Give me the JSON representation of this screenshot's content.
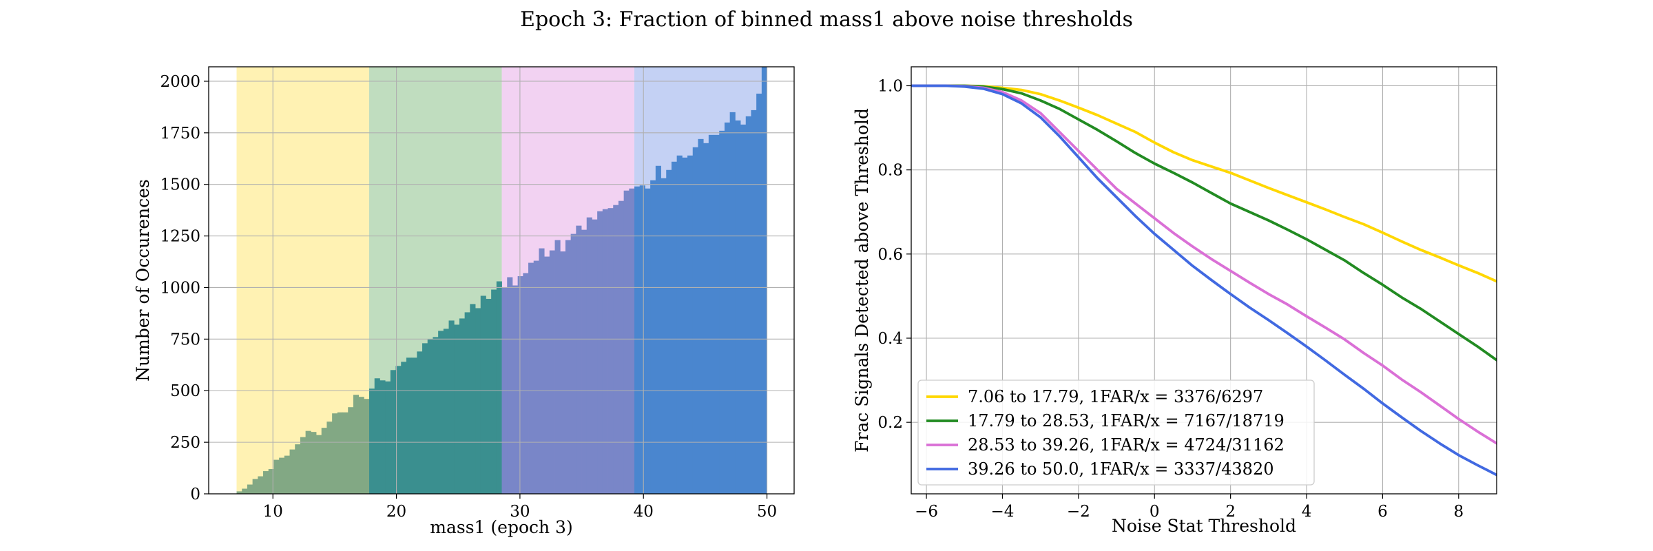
{
  "figure": {
    "title": "Epoch 3: Fraction of binned mass1 above noise thresholds"
  },
  "chart_data": [
    {
      "type": "bar",
      "xlabel": "mass1 (epoch 3)",
      "ylabel": "Number of Occurences",
      "xlim": [
        4.8,
        52.2
      ],
      "ylim": [
        0,
        2070
      ],
      "xticks": [
        10,
        20,
        30,
        40,
        50
      ],
      "yticks": [
        0,
        250,
        500,
        750,
        1000,
        1250,
        1500,
        1750,
        2000
      ],
      "grid": true,
      "bin_range": [
        7.06,
        50.0
      ],
      "bin_count": 100,
      "bands": [
        {
          "from": 7.06,
          "to": 17.79,
          "band_color": "#fff2b3",
          "bar_color": "#82a884"
        },
        {
          "from": 17.79,
          "to": 28.53,
          "band_color": "#c0ddbf",
          "bar_color": "#3a8f8f"
        },
        {
          "from": 28.53,
          "to": 39.26,
          "band_color": "#f2d2f2",
          "bar_color": "#7986c8"
        },
        {
          "from": 39.26,
          "to": 50.0,
          "band_color": "#c4d1f4",
          "bar_color": "#4a86cf"
        }
      ],
      "values": [
        12,
        25,
        45,
        72,
        85,
        110,
        120,
        165,
        175,
        185,
        215,
        240,
        275,
        305,
        300,
        285,
        320,
        350,
        390,
        395,
        395,
        420,
        480,
        470,
        460,
        510,
        560,
        550,
        545,
        600,
        620,
        640,
        660,
        660,
        690,
        730,
        750,
        760,
        790,
        800,
        840,
        820,
        850,
        880,
        920,
        900,
        960,
        945,
        990,
        1030,
        1000,
        1050,
        1010,
        1055,
        1070,
        1120,
        1130,
        1190,
        1150,
        1180,
        1230,
        1175,
        1230,
        1260,
        1300,
        1280,
        1340,
        1330,
        1370,
        1380,
        1385,
        1400,
        1420,
        1470,
        1480,
        1490,
        1495,
        1480,
        1520,
        1590,
        1530,
        1570,
        1610,
        1640,
        1630,
        1640,
        1680,
        1720,
        1700,
        1740,
        1740,
        1760,
        1800,
        1850,
        1810,
        1790,
        1830,
        1860,
        1940,
        2070
      ]
    },
    {
      "type": "line",
      "xlabel": "Noise Stat Threshold",
      "ylabel": "Frac Signals Detected above Threshold",
      "xlim": [
        -6.4,
        9.0
      ],
      "ylim": [
        0.03,
        1.045
      ],
      "xticks": [
        -6,
        -4,
        -2,
        0,
        2,
        4,
        6,
        8
      ],
      "xtick_labels": [
        "−6",
        "−4",
        "−2",
        "0",
        "2",
        "4",
        "6",
        "8"
      ],
      "yticks": [
        0.2,
        0.4,
        0.6,
        0.8,
        1.0
      ],
      "ytick_labels": [
        "0.2",
        "0.4",
        "0.6",
        "0.8",
        "1.0"
      ],
      "grid": true,
      "legend_position": "lower-left",
      "x": [
        -6.4,
        -6,
        -5.5,
        -5,
        -4.5,
        -4,
        -3.5,
        -3,
        -2.5,
        -2,
        -1.5,
        -1,
        -0.5,
        0,
        0.5,
        1,
        1.5,
        2,
        2.5,
        3,
        3.5,
        4,
        4.5,
        5,
        5.5,
        6,
        6.5,
        7,
        7.5,
        8,
        8.5,
        9
      ],
      "series": [
        {
          "name": "7.06 to 17.79, 1FAR/x = 3376/6297",
          "color": "#ffd700",
          "values": [
            1.0,
            1.0,
            1.0,
            1.0,
            0.999,
            0.995,
            0.99,
            0.98,
            0.965,
            0.948,
            0.93,
            0.91,
            0.89,
            0.865,
            0.842,
            0.823,
            0.808,
            0.793,
            0.775,
            0.757,
            0.74,
            0.723,
            0.706,
            0.688,
            0.671,
            0.651,
            0.63,
            0.61,
            0.592,
            0.573,
            0.555,
            0.535
          ]
        },
        {
          "name": "17.79 to 28.53, 1FAR/x = 7167/18719",
          "color": "#228b22",
          "values": [
            1.0,
            1.0,
            1.0,
            1.0,
            0.998,
            0.992,
            0.982,
            0.965,
            0.945,
            0.92,
            0.895,
            0.868,
            0.84,
            0.815,
            0.793,
            0.77,
            0.745,
            0.72,
            0.7,
            0.68,
            0.658,
            0.635,
            0.61,
            0.585,
            0.555,
            0.527,
            0.497,
            0.47,
            0.44,
            0.41,
            0.38,
            0.348
          ]
        },
        {
          "name": "28.53 to 39.26, 1FAR/x = 4724/31162",
          "color": "#da70d6",
          "values": [
            1.0,
            1.0,
            1.0,
            0.999,
            0.995,
            0.985,
            0.965,
            0.935,
            0.89,
            0.845,
            0.8,
            0.755,
            0.72,
            0.685,
            0.65,
            0.618,
            0.588,
            0.56,
            0.532,
            0.505,
            0.48,
            0.452,
            0.425,
            0.397,
            0.365,
            0.335,
            0.302,
            0.272,
            0.24,
            0.208,
            0.178,
            0.15
          ]
        },
        {
          "name": "39.26 to 50.0, 1FAR/x = 3337/43820",
          "color": "#4169e1",
          "values": [
            1.0,
            1.0,
            1.0,
            0.998,
            0.993,
            0.98,
            0.958,
            0.925,
            0.88,
            0.83,
            0.78,
            0.735,
            0.69,
            0.648,
            0.61,
            0.572,
            0.538,
            0.505,
            0.473,
            0.443,
            0.412,
            0.38,
            0.347,
            0.313,
            0.28,
            0.245,
            0.212,
            0.18,
            0.15,
            0.122,
            0.098,
            0.075
          ]
        }
      ]
    }
  ]
}
